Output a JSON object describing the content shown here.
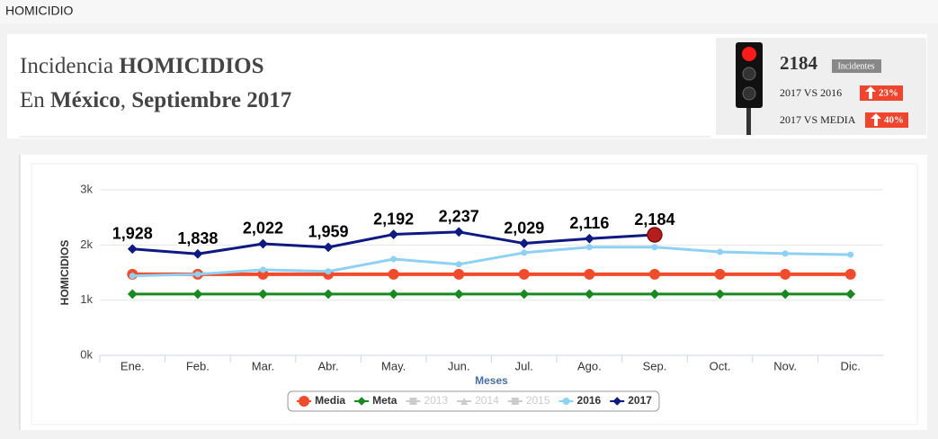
{
  "page": {
    "section": "HOMICIDIO",
    "title_line1": [
      "Incidencia",
      "HOMICIDIOS"
    ],
    "title_line2": [
      "En",
      "México",
      ",",
      "Septiembre 2017"
    ],
    "stats": {
      "total": "2184",
      "total_label": "Incidentes",
      "rows": [
        {
          "label": "2017 VS 2016",
          "change": "23%"
        },
        {
          "label": "2017 VS MEDIA",
          "change": "40%"
        }
      ]
    }
  },
  "chart_data": {
    "type": "line",
    "ylabel": "HOMICIDIOS",
    "xlabel": "Meses",
    "categories": [
      "Ene.",
      "Feb.",
      "Mar.",
      "Abr.",
      "May.",
      "Jun.",
      "Jul.",
      "Ago.",
      "Sep.",
      "Oct.",
      "Nov.",
      "Dic."
    ],
    "ylim": [
      0,
      3000
    ],
    "yticks": [
      {
        "value": 0,
        "label": "0k"
      },
      {
        "value": 1000,
        "label": "1k"
      },
      {
        "value": 2000,
        "label": "2k"
      },
      {
        "value": 3000,
        "label": "3k"
      }
    ],
    "grid": true,
    "legend": "bottom",
    "series": [
      {
        "name": "Media",
        "color": "#f24b2b",
        "marker": "circle",
        "visible": true,
        "values": [
          1470,
          1470,
          1470,
          1470,
          1470,
          1470,
          1470,
          1470,
          1470,
          1470,
          1470,
          1470
        ]
      },
      {
        "name": "Meta",
        "color": "#178a1f",
        "marker": "diamond",
        "visible": true,
        "values": [
          1110,
          1110,
          1110,
          1110,
          1110,
          1110,
          1110,
          1110,
          1110,
          1110,
          1110,
          1110
        ]
      },
      {
        "name": "2013",
        "color": "#cccccc",
        "marker": "square",
        "visible": false,
        "values": [
          null,
          null,
          null,
          null,
          null,
          null,
          null,
          null,
          null,
          null,
          null,
          null
        ]
      },
      {
        "name": "2014",
        "color": "#cccccc",
        "marker": "triangle",
        "visible": false,
        "values": [
          null,
          null,
          null,
          null,
          null,
          null,
          null,
          null,
          null,
          null,
          null,
          null
        ]
      },
      {
        "name": "2015",
        "color": "#cccccc",
        "marker": "square",
        "visible": false,
        "values": [
          null,
          null,
          null,
          null,
          null,
          null,
          null,
          null,
          null,
          null,
          null,
          null
        ]
      },
      {
        "name": "2016",
        "color": "#8fd1f2",
        "marker": "circle",
        "visible": true,
        "values": [
          1440,
          1470,
          1550,
          1520,
          1745,
          1650,
          1860,
          1960,
          1960,
          1875,
          1845,
          1825
        ]
      },
      {
        "name": "2017",
        "color": "#0e1a82",
        "marker": "diamond",
        "visible": true,
        "values": [
          1928,
          1838,
          2022,
          1959,
          2192,
          2237,
          2029,
          2116,
          2184,
          null,
          null,
          null
        ],
        "value_labels": [
          "1,928",
          "1,838",
          "2,022",
          "1,959",
          "2,192",
          "2,237",
          "2,029",
          "2,116",
          "2,184",
          null,
          null,
          null
        ]
      }
    ]
  }
}
